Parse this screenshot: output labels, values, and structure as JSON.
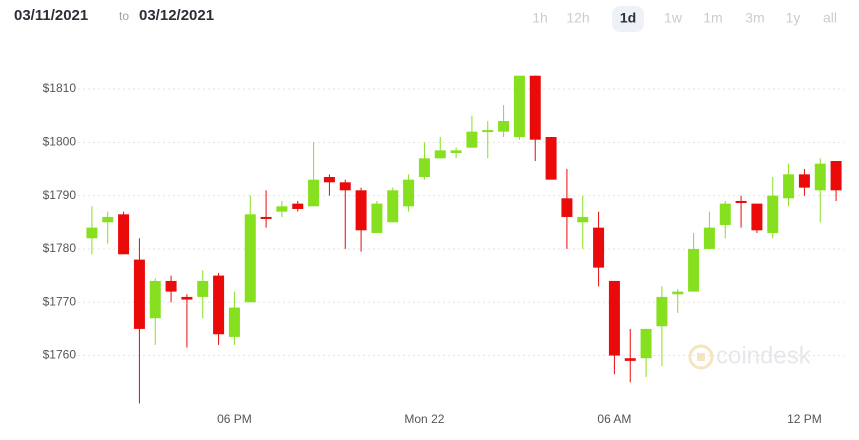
{
  "header": {
    "date_from": "03/11/2021",
    "separator": "to",
    "date_to": "03/12/2021",
    "ranges": [
      "1h",
      "12h",
      "1d",
      "1w",
      "1m",
      "3m",
      "1y",
      "all"
    ],
    "selected_range": 2,
    "watermark": "coindesk"
  },
  "chart_data": {
    "type": "candlestick",
    "categories": [
      null,
      null,
      null,
      null,
      null,
      null,
      null,
      null,
      null,
      "06 PM",
      null,
      null,
      null,
      null,
      null,
      null,
      null,
      null,
      null,
      null,
      null,
      "Mon 22",
      null,
      null,
      null,
      null,
      null,
      null,
      null,
      null,
      null,
      null,
      null,
      "06 AM",
      null,
      null,
      null,
      null,
      null,
      null,
      null,
      null,
      null,
      null,
      null,
      "12 PM",
      null,
      null
    ],
    "open": [
      1782,
      1785,
      1786.5,
      1778,
      1767,
      1774,
      1771,
      1771,
      1775,
      1763.5,
      1770,
      1786,
      1787,
      1788.5,
      1788,
      1793.5,
      1792.5,
      1791,
      1783,
      1785,
      1788,
      1793.5,
      1797,
      1798,
      1799,
      1802,
      1802,
      1801,
      1812.5,
      1801,
      1789.5,
      1785,
      1784,
      1774,
      1759.5,
      1759.5,
      1765.5,
      1771.5,
      1772,
      1780,
      1784.5,
      1789,
      1788.5,
      1783,
      1789.5,
      1794,
      1791,
      1796.5
    ],
    "high": [
      1788,
      1787,
      1787,
      1782,
      1774.5,
      1775,
      1771.5,
      1776,
      1775.5,
      1772,
      1790,
      1791,
      1789,
      1789,
      1800,
      1794,
      1793,
      1791.5,
      1789,
      1791.5,
      1794,
      1800,
      1801,
      1799,
      1805,
      1804,
      1807,
      1812.5,
      1812.5,
      1801,
      1795,
      1790,
      1787,
      1774,
      1765,
      1765,
      1773,
      1772.5,
      1783,
      1787,
      1789,
      1790,
      1788.5,
      1793.5,
      1796,
      1795,
      1797,
      1796.5
    ],
    "low": [
      1779,
      1781,
      1779,
      1751,
      1762,
      1770,
      1761.5,
      1767,
      1762,
      1762,
      1770,
      1784,
      1786,
      1787,
      1788,
      1790,
      1780,
      1779.5,
      1783,
      1785,
      1787,
      1793,
      1797,
      1797,
      1799,
      1797,
      1801,
      1800.5,
      1796.5,
      1793,
      1780,
      1780,
      1773,
      1756.5,
      1755,
      1756,
      1758,
      1768,
      1772,
      1780,
      1782,
      1784,
      1783,
      1782,
      1788,
      1790,
      1785,
      1789
    ],
    "close": [
      1784,
      1786,
      1779,
      1765,
      1774,
      1772,
      1770.5,
      1774,
      1764,
      1769,
      1786.5,
      1785.8,
      1788,
      1787.5,
      1793,
      1792.5,
      1791,
      1783.5,
      1788.5,
      1791,
      1793,
      1797,
      1798.5,
      1798.5,
      1802,
      1802.3,
      1804,
      1812.5,
      1800.5,
      1793,
      1786,
      1786,
      1776.5,
      1760,
      1759,
      1765,
      1771,
      1772,
      1780,
      1784,
      1788.5,
      1788.7,
      1783.5,
      1790,
      1794,
      1791.5,
      1796,
      1791
    ],
    "up_color": "#86df1f",
    "down_color": "#ea0a0a",
    "ylim": [
      1752,
      1818
    ],
    "yticks": [
      {
        "value": 1760,
        "label": "$1760"
      },
      {
        "value": 1770,
        "label": "$1770"
      },
      {
        "value": 1780,
        "label": "$1780"
      },
      {
        "value": 1790,
        "label": "$1790"
      },
      {
        "value": 1800,
        "label": "$1800"
      },
      {
        "value": 1810,
        "label": "$1810"
      }
    ],
    "grid": true
  }
}
